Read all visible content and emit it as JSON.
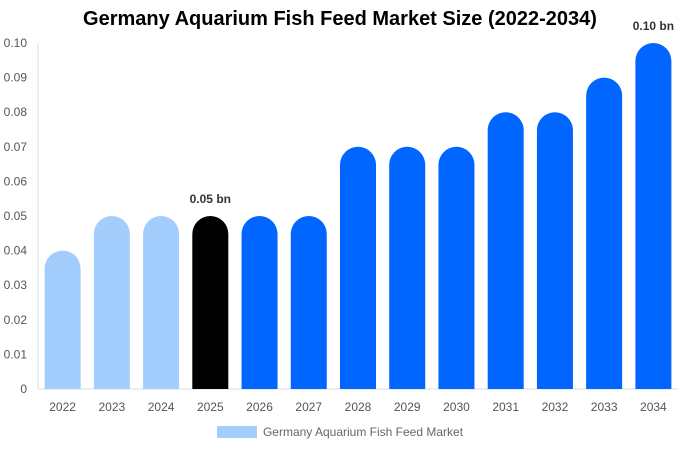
{
  "chart_data": {
    "type": "bar",
    "title": "Germany Aquarium Fish Feed Market Size (2022-2034)",
    "categories": [
      "2022",
      "2023",
      "2024",
      "2025",
      "2026",
      "2027",
      "2028",
      "2029",
      "2030",
      "2031",
      "2032",
      "2033",
      "2034"
    ],
    "series": [
      {
        "name": "Germany Aquarium Fish Feed Market",
        "values": [
          0.04,
          0.05,
          0.05,
          0.05,
          0.05,
          0.05,
          0.07,
          0.07,
          0.07,
          0.08,
          0.08,
          0.09,
          0.1
        ]
      }
    ],
    "ylim": [
      0,
      0.1
    ],
    "yticks": [
      "0",
      "0.01",
      "0.02",
      "0.03",
      "0.04",
      "0.05",
      "0.06",
      "0.07",
      "0.08",
      "0.09",
      "0.10"
    ],
    "data_labels": [
      {
        "category": "2025",
        "text": "0.05 bn"
      },
      {
        "category": "2034",
        "text": "0.10 bn"
      }
    ],
    "colors": {
      "historical": "#a3cdfd",
      "current": "#000000",
      "forecast": "#0066ff"
    },
    "color_groups": [
      "historical",
      "historical",
      "historical",
      "current",
      "forecast",
      "forecast",
      "forecast",
      "forecast",
      "forecast",
      "forecast",
      "forecast",
      "forecast",
      "forecast"
    ],
    "legend": {
      "position": "bottom",
      "label": "Germany Aquarium Fish Feed Market",
      "color": "#a3cdfd"
    },
    "grid": false
  }
}
